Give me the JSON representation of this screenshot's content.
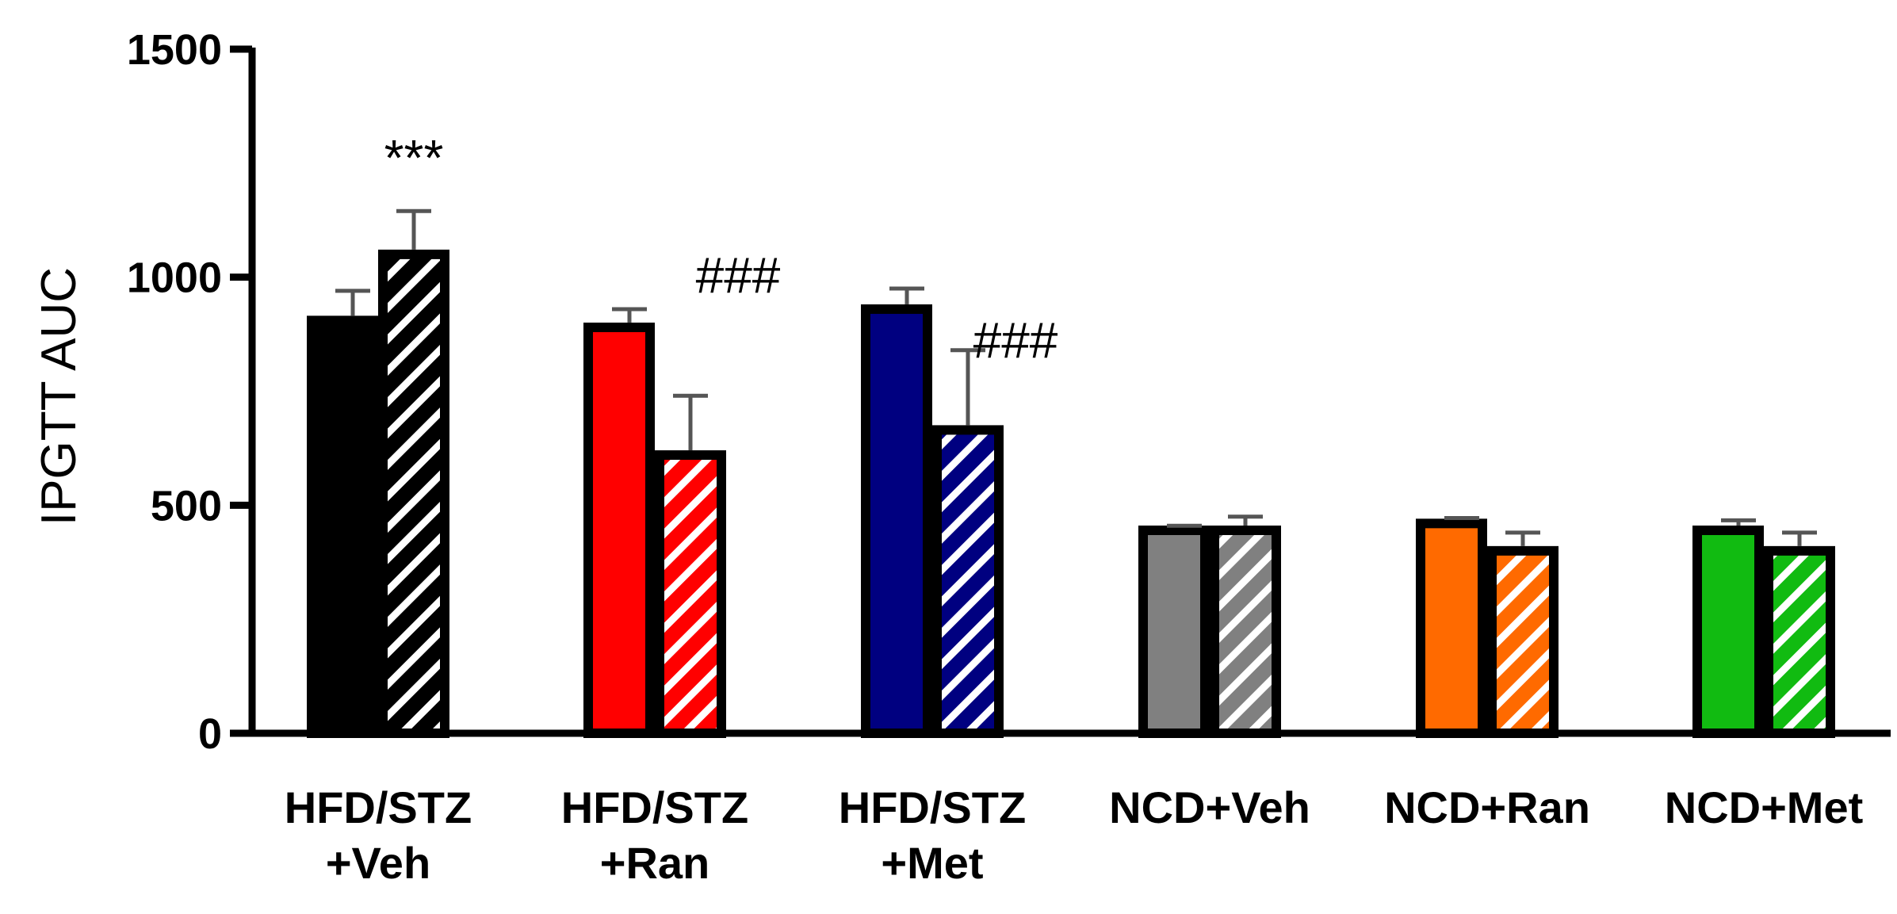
{
  "chart_data": {
    "type": "bar",
    "ylabel": "IPGTT AUC",
    "ylim": [
      0,
      1500
    ],
    "yticks": [
      "0",
      "500",
      "1000",
      "1500"
    ],
    "categories": [
      [
        "HFD/STZ",
        "+Veh"
      ],
      [
        "HFD/STZ",
        "+Ran"
      ],
      [
        "HFD/STZ",
        "+Met"
      ],
      [
        "NCD+Veh"
      ],
      [
        "NCD+Ran"
      ],
      [
        "NCD+Met"
      ]
    ],
    "colors": [
      "#000000",
      "#ff0000",
      "#000080",
      "#808080",
      "#ff6a00",
      "#11bb11"
    ],
    "series": [
      {
        "pattern": "solid",
        "values": [
          905,
          890,
          930,
          445,
          460,
          445
        ],
        "errors": [
          65,
          40,
          45,
          10,
          12,
          22
        ]
      },
      {
        "pattern": "hatched",
        "values": [
          1050,
          610,
          665,
          445,
          400,
          400
        ],
        "errors": [
          95,
          130,
          175,
          30,
          40,
          40
        ]
      }
    ],
    "annotations": [
      {
        "text": "***",
        "group": 0,
        "bar": 1
      },
      {
        "text": "###",
        "group": 1,
        "bar": 1
      },
      {
        "text": "###",
        "group": 2,
        "bar": 1
      }
    ]
  }
}
